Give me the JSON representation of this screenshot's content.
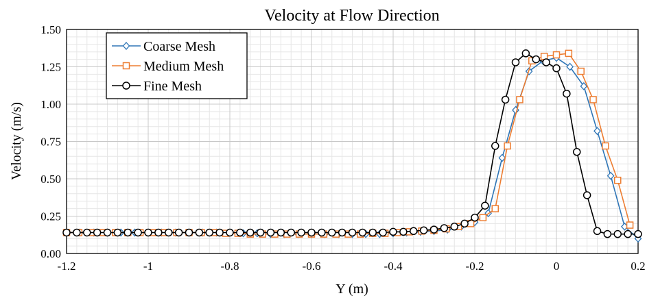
{
  "chart_data": {
    "type": "line",
    "title": "Velocity at Flow Direction",
    "xlabel": "Y (m)",
    "ylabel": "Velocity  (m/s)",
    "xlim": [
      -1.2,
      0.2
    ],
    "ylim": [
      0,
      1.5
    ],
    "xticks": [
      -1.2,
      -1.0,
      -0.8,
      -0.6,
      -0.4,
      -0.2,
      0,
      0.2
    ],
    "xtick_labels": [
      "-1.2",
      "-1",
      "-0.8",
      "-0.6",
      "-0.4",
      "-0.2",
      "0",
      "0.2"
    ],
    "yticks": [
      0,
      0.25,
      0.5,
      0.75,
      1.0,
      1.25,
      1.5
    ],
    "ytick_labels": [
      "0.00",
      "0.25",
      "0.50",
      "0.75",
      "1.00",
      "1.25",
      "1.50"
    ],
    "minor_grid": {
      "x_step": 0.025,
      "y_step": 0.05
    },
    "grid": true,
    "legend_position": "top-left",
    "series": [
      {
        "name": "Coarse Mesh",
        "color": "#2E75B6",
        "marker": "diamond",
        "x": [
          -1.2,
          -1.167,
          -1.133,
          -1.1,
          -1.067,
          -1.033,
          -1.0,
          -0.967,
          -0.933,
          -0.9,
          -0.867,
          -0.833,
          -0.8,
          -0.767,
          -0.733,
          -0.7,
          -0.667,
          -0.633,
          -0.6,
          -0.567,
          -0.533,
          -0.5,
          -0.467,
          -0.433,
          -0.4,
          -0.367,
          -0.333,
          -0.3,
          -0.267,
          -0.233,
          -0.2,
          -0.167,
          -0.133,
          -0.1,
          -0.067,
          -0.033,
          0.0,
          0.033,
          0.067,
          0.1,
          0.133,
          0.167,
          0.2
        ],
        "y": [
          0.14,
          0.14,
          0.14,
          0.14,
          0.14,
          0.14,
          0.14,
          0.14,
          0.14,
          0.14,
          0.14,
          0.14,
          0.14,
          0.135,
          0.135,
          0.13,
          0.13,
          0.13,
          0.13,
          0.13,
          0.13,
          0.13,
          0.13,
          0.13,
          0.135,
          0.14,
          0.145,
          0.15,
          0.16,
          0.18,
          0.21,
          0.27,
          0.64,
          0.96,
          1.22,
          1.29,
          1.31,
          1.25,
          1.12,
          0.82,
          0.52,
          0.18,
          0.1
        ]
      },
      {
        "name": "Medium Mesh",
        "color": "#ED7D31",
        "marker": "square",
        "x": [
          -1.2,
          -1.17,
          -1.14,
          -1.11,
          -1.08,
          -1.05,
          -1.02,
          -0.99,
          -0.96,
          -0.93,
          -0.9,
          -0.87,
          -0.84,
          -0.81,
          -0.78,
          -0.75,
          -0.72,
          -0.69,
          -0.66,
          -0.63,
          -0.6,
          -0.57,
          -0.54,
          -0.51,
          -0.48,
          -0.45,
          -0.42,
          -0.39,
          -0.36,
          -0.33,
          -0.3,
          -0.27,
          -0.24,
          -0.21,
          -0.18,
          -0.15,
          -0.12,
          -0.09,
          -0.06,
          -0.03,
          0.0,
          0.03,
          0.06,
          0.09,
          0.12,
          0.15,
          0.18
        ],
        "y": [
          0.14,
          0.14,
          0.14,
          0.14,
          0.14,
          0.14,
          0.14,
          0.14,
          0.14,
          0.14,
          0.14,
          0.14,
          0.14,
          0.135,
          0.135,
          0.13,
          0.13,
          0.13,
          0.13,
          0.13,
          0.13,
          0.13,
          0.13,
          0.13,
          0.13,
          0.135,
          0.135,
          0.14,
          0.145,
          0.15,
          0.155,
          0.165,
          0.18,
          0.2,
          0.24,
          0.3,
          0.72,
          1.03,
          1.29,
          1.32,
          1.33,
          1.34,
          1.22,
          1.03,
          0.72,
          0.49,
          0.19
        ]
      },
      {
        "name": "Fine Mesh",
        "color": "#000000",
        "marker": "circle",
        "x": [
          -1.2,
          -1.175,
          -1.15,
          -1.125,
          -1.1,
          -1.075,
          -1.05,
          -1.025,
          -1.0,
          -0.975,
          -0.95,
          -0.925,
          -0.9,
          -0.875,
          -0.85,
          -0.825,
          -0.8,
          -0.775,
          -0.75,
          -0.725,
          -0.7,
          -0.675,
          -0.65,
          -0.625,
          -0.6,
          -0.575,
          -0.55,
          -0.525,
          -0.5,
          -0.475,
          -0.45,
          -0.425,
          -0.4,
          -0.375,
          -0.35,
          -0.325,
          -0.3,
          -0.275,
          -0.25,
          -0.225,
          -0.2,
          -0.175,
          -0.15,
          -0.125,
          -0.1,
          -0.075,
          -0.05,
          -0.025,
          0.0,
          0.025,
          0.05,
          0.075,
          0.1,
          0.125,
          0.15,
          0.175,
          0.2
        ],
        "y": [
          0.14,
          0.14,
          0.14,
          0.14,
          0.14,
          0.14,
          0.14,
          0.14,
          0.14,
          0.14,
          0.14,
          0.14,
          0.14,
          0.14,
          0.14,
          0.14,
          0.14,
          0.14,
          0.14,
          0.14,
          0.14,
          0.14,
          0.14,
          0.14,
          0.14,
          0.14,
          0.14,
          0.14,
          0.14,
          0.14,
          0.14,
          0.14,
          0.145,
          0.145,
          0.15,
          0.155,
          0.16,
          0.17,
          0.18,
          0.2,
          0.24,
          0.32,
          0.72,
          1.03,
          1.28,
          1.34,
          1.3,
          1.28,
          1.24,
          1.07,
          0.68,
          0.39,
          0.15,
          0.13,
          0.13,
          0.13,
          0.13
        ]
      }
    ]
  }
}
